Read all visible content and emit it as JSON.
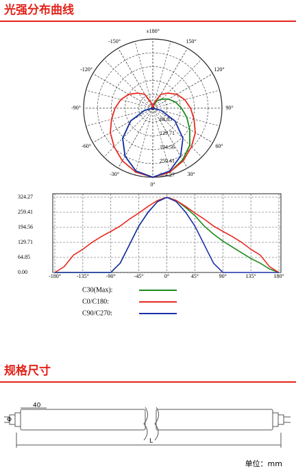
{
  "heading_1": "光强分布曲线",
  "chart_data": [
    {
      "type": "polar",
      "theta": [
        -180,
        -165,
        -150,
        -135,
        -120,
        -105,
        -90,
        -75,
        -60,
        -45,
        -30,
        -15,
        0,
        15,
        30,
        45,
        60,
        75,
        90,
        105,
        120,
        135,
        150,
        165,
        180
      ],
      "rlim": [
        0,
        324.27
      ],
      "rticks": [
        64.85,
        129.71,
        194.56,
        259.41,
        324.27
      ],
      "thetaticks": [
        {
          "value": 180,
          "label": "±180°"
        },
        {
          "value": -150,
          "label": "-150°"
        },
        {
          "value": 150,
          "label": "150°"
        },
        {
          "value": -120,
          "label": "-120°"
        },
        {
          "value": 120,
          "label": "120°"
        },
        {
          "value": -90,
          "label": "-90°"
        },
        {
          "value": 90,
          "label": "90°"
        },
        {
          "value": -60,
          "label": "-60°"
        },
        {
          "value": 60,
          "label": "60°"
        },
        {
          "value": -30,
          "label": "-30°"
        },
        {
          "value": 30,
          "label": "30°"
        },
        {
          "value": 0,
          "label": "0°"
        }
      ],
      "series": [
        {
          "name": "C30(Max):",
          "color": "#1a8a1a",
          "values": [
            0,
            0,
            0,
            0,
            0,
            0,
            0,
            40,
            120,
            200,
            260,
            305,
            324,
            310,
            280,
            245,
            200,
            165,
            135,
            110,
            85,
            60,
            40,
            15,
            0
          ]
        },
        {
          "name": "C0/C180:",
          "color": "#e8281e",
          "values": [
            0,
            25,
            75,
            100,
            130,
            155,
            177,
            200,
            230,
            256,
            285,
            310,
            324,
            310,
            285,
            256,
            230,
            200,
            177,
            155,
            130,
            100,
            75,
            25,
            0
          ]
        },
        {
          "name": "C90/C270:",
          "color": "#1a2fa8",
          "values": [
            0,
            0,
            0,
            0,
            0,
            0,
            0,
            40,
            120,
            200,
            260,
            305,
            324,
            305,
            260,
            200,
            120,
            40,
            0,
            0,
            0,
            0,
            0,
            0,
            0
          ]
        }
      ]
    },
    {
      "type": "line",
      "x": [
        -180,
        -165,
        -150,
        -135,
        -120,
        -105,
        -90,
        -75,
        -60,
        -45,
        -30,
        -15,
        0,
        15,
        30,
        45,
        60,
        75,
        90,
        105,
        120,
        135,
        150,
        165,
        180
      ],
      "xlim": [
        -180,
        180
      ],
      "ylim": [
        0,
        324.27
      ],
      "xticks": [
        {
          "value": -180,
          "label": "-180°"
        },
        {
          "value": -135,
          "label": "-135°"
        },
        {
          "value": -90,
          "label": "-90°"
        },
        {
          "value": -45,
          "label": "-45°"
        },
        {
          "value": 0,
          "label": "0°"
        },
        {
          "value": 45,
          "label": "45°"
        },
        {
          "value": 90,
          "label": "90°"
        },
        {
          "value": 135,
          "label": "135°"
        },
        {
          "value": 180,
          "label": "180°"
        }
      ],
      "yticks": [
        {
          "value": 0,
          "label": "0.00"
        },
        64.85,
        129.71,
        194.56,
        259.41,
        324.27
      ],
      "grid": true,
      "series": [
        {
          "name": "C30(Max):",
          "color": "#1a8a1a",
          "values": [
            0,
            0,
            0,
            0,
            0,
            0,
            0,
            40,
            120,
            200,
            260,
            305,
            324,
            310,
            280,
            245,
            200,
            165,
            135,
            110,
            85,
            60,
            40,
            15,
            0
          ]
        },
        {
          "name": "C0/C180:",
          "color": "#e8281e",
          "values": [
            0,
            25,
            75,
            100,
            130,
            155,
            177,
            200,
            230,
            256,
            285,
            310,
            324,
            310,
            285,
            256,
            230,
            200,
            177,
            155,
            130,
            100,
            75,
            25,
            0
          ]
        },
        {
          "name": "C90/C270:",
          "color": "#1a2fa8",
          "values": [
            0,
            0,
            0,
            0,
            0,
            0,
            0,
            40,
            120,
            200,
            260,
            305,
            324,
            305,
            260,
            200,
            120,
            40,
            0,
            0,
            0,
            0,
            0,
            0,
            0
          ]
        }
      ]
    }
  ],
  "heading_2": "规格尺寸",
  "dimension": {
    "width": "40",
    "diameter": "Φ",
    "length": "L"
  },
  "unit": "单位：mm"
}
